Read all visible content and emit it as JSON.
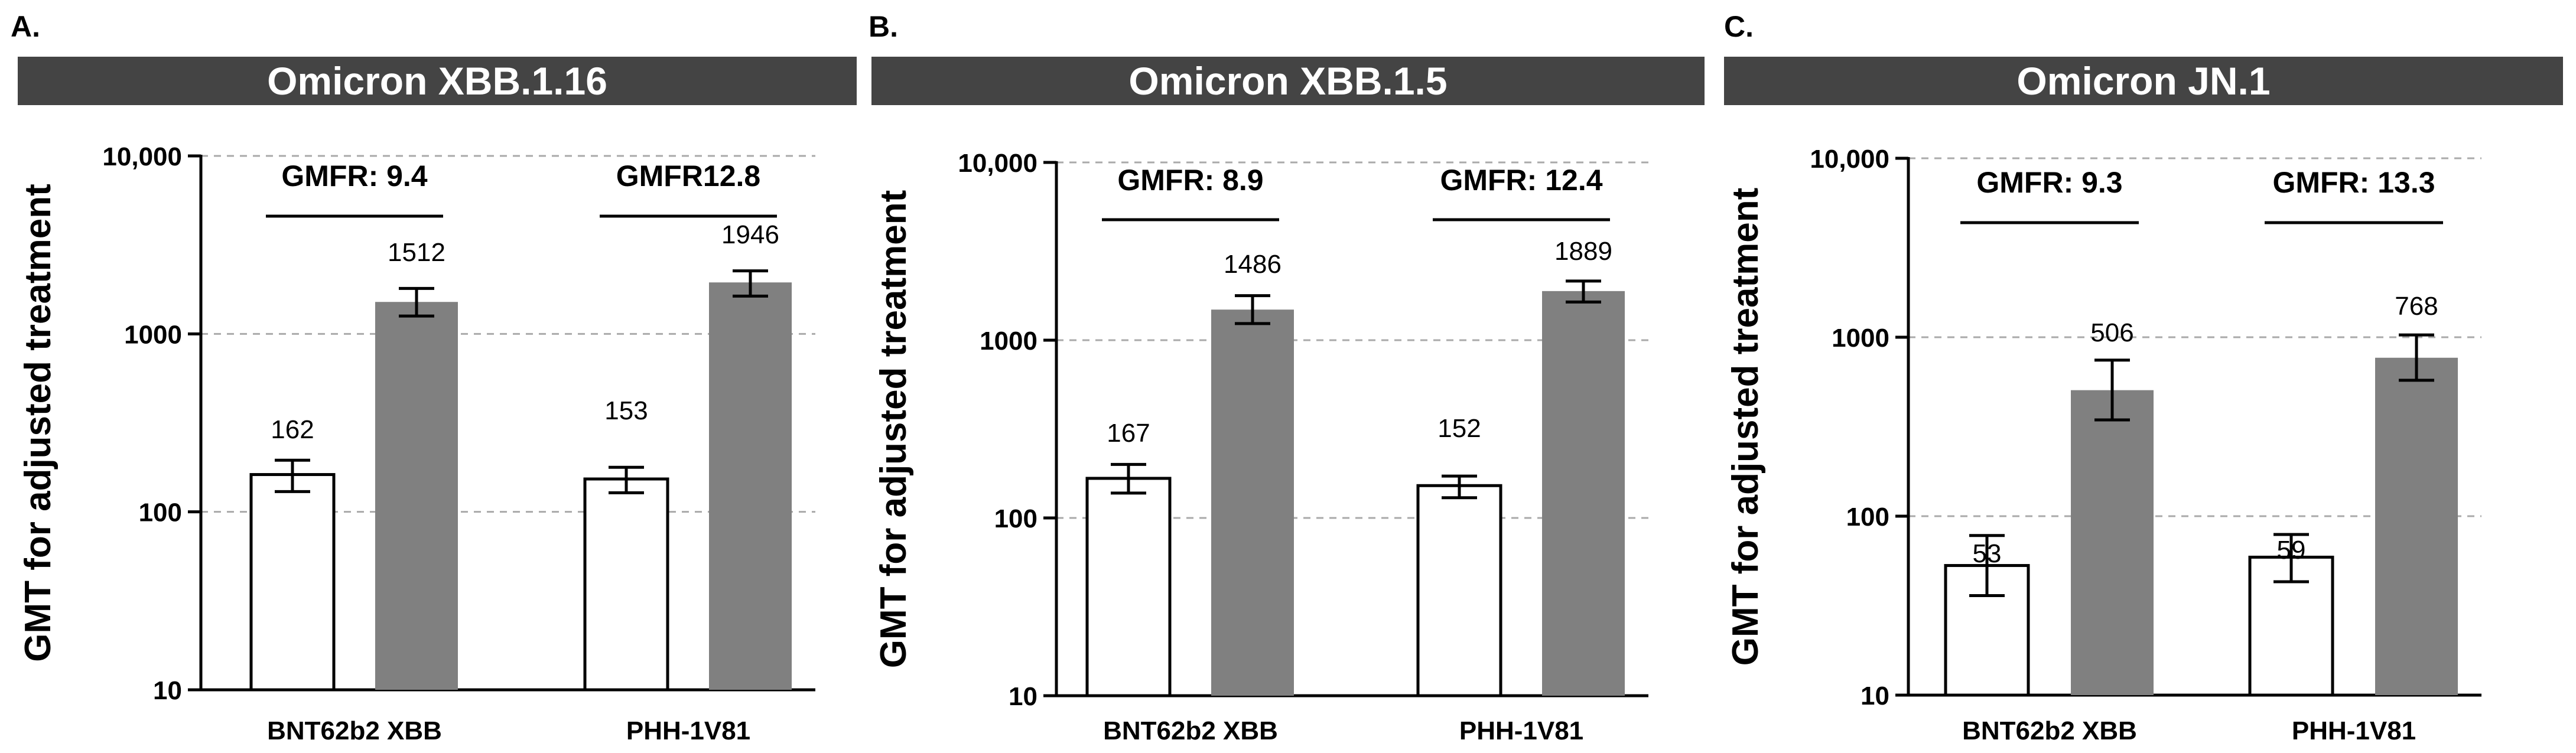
{
  "colors": {
    "banner": "#444444",
    "bar_open": "#ffffff",
    "bar_filled": "#808080",
    "axis": "#000000",
    "grid": "#aaaaaa"
  },
  "chart_data": [
    {
      "type": "bar",
      "panel": "A.",
      "title": "Omicron XBB.1.16",
      "ylabel": "GMT for adjusted treatment",
      "yscale": "log",
      "ylim": [
        10,
        10000
      ],
      "yticks": [
        "10",
        "100",
        "1000",
        "10,000"
      ],
      "grid": true,
      "categories": [
        "BNT62b2 XBB",
        "PHH-1V81"
      ],
      "series": [
        {
          "values": [
            162,
            153
          ],
          "error_low": [
            130,
            128
          ],
          "error_high": [
            195,
            178
          ],
          "labels": [
            "162",
            "153"
          ]
        },
        {
          "values": [
            1512,
            1946
          ],
          "error_low": [
            1260,
            1630
          ],
          "error_high": [
            1800,
            2260
          ],
          "labels": [
            "1512",
            "1946"
          ]
        }
      ],
      "annotations": [
        "GMFR: 9.4",
        "GMFR12.8"
      ]
    },
    {
      "type": "bar",
      "panel": "B.",
      "title": "Omicron XBB.1.5",
      "ylabel": "GMT for adjusted treatment",
      "yscale": "log",
      "ylim": [
        10,
        10000
      ],
      "yticks": [
        "10",
        "100",
        "1000",
        "10,000"
      ],
      "grid": true,
      "categories": [
        "BNT62b2 XBB",
        "PHH-1V81"
      ],
      "series": [
        {
          "values": [
            167,
            152
          ],
          "error_low": [
            138,
            130
          ],
          "error_high": [
            200,
            172
          ],
          "labels": [
            "167",
            "152"
          ]
        },
        {
          "values": [
            1486,
            1889
          ],
          "error_low": [
            1240,
            1640
          ],
          "error_high": [
            1780,
            2150
          ],
          "labels": [
            "1486",
            "1889"
          ]
        }
      ],
      "annotations": [
        "GMFR: 8.9",
        "GMFR: 12.4"
      ]
    },
    {
      "type": "bar",
      "panel": "C.",
      "title": "Omicron JN.1",
      "ylabel": "GMT for adjusted treatment",
      "yscale": "log",
      "ylim": [
        10,
        10000
      ],
      "yticks": [
        "10",
        "100",
        "1000",
        "10,000"
      ],
      "grid": true,
      "categories": [
        "BNT62b2 XBB",
        "PHH-1V81"
      ],
      "series": [
        {
          "values": [
            53,
            59
          ],
          "error_low": [
            36,
            43
          ],
          "error_high": [
            78,
            79
          ],
          "labels": [
            "53",
            "59"
          ]
        },
        {
          "values": [
            506,
            768
          ],
          "error_low": [
            345,
            575
          ],
          "error_high": [
            745,
            1030
          ],
          "labels": [
            "506",
            "768"
          ]
        }
      ],
      "annotations": [
        "GMFR: 9.3",
        "GMFR: 13.3"
      ]
    }
  ]
}
